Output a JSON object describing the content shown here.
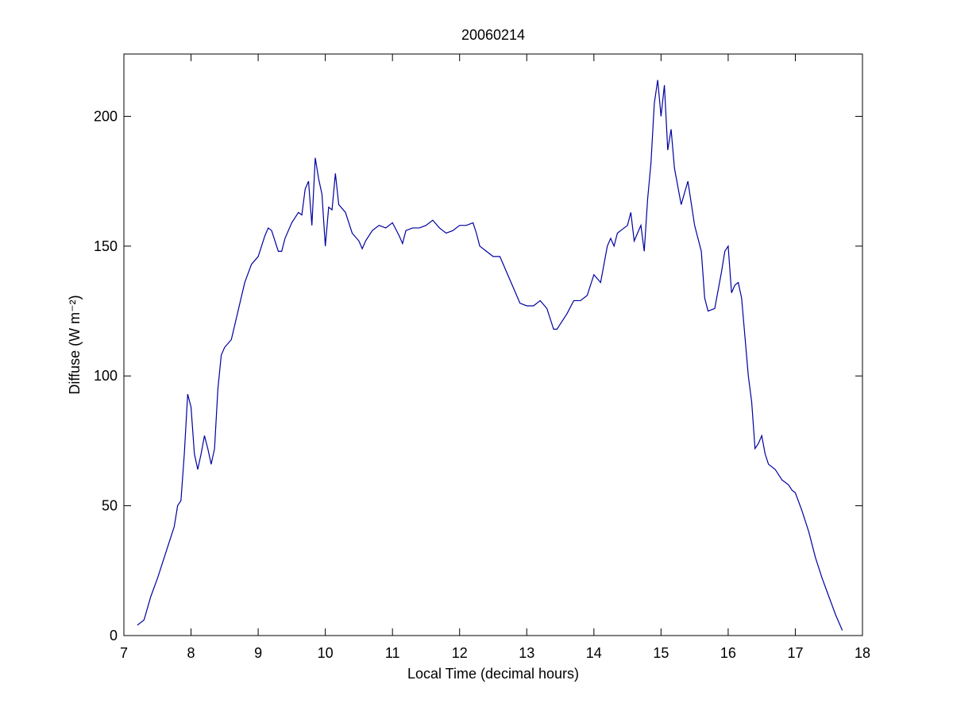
{
  "chart_data": {
    "type": "line",
    "title": "20060214",
    "xlabel": "Local Time (decimal hours)",
    "ylabel": "Diffuse (W m⁻²)",
    "x": [
      7.2,
      7.3,
      7.4,
      7.5,
      7.6,
      7.7,
      7.75,
      7.8,
      7.85,
      7.9,
      7.95,
      8.0,
      8.05,
      8.1,
      8.15,
      8.2,
      8.25,
      8.3,
      8.35,
      8.4,
      8.45,
      8.5,
      8.6,
      8.7,
      8.8,
      8.9,
      9.0,
      9.1,
      9.15,
      9.2,
      9.3,
      9.35,
      9.4,
      9.5,
      9.6,
      9.65,
      9.7,
      9.75,
      9.8,
      9.85,
      9.9,
      9.95,
      10.0,
      10.05,
      10.1,
      10.15,
      10.2,
      10.3,
      10.4,
      10.5,
      10.55,
      10.6,
      10.7,
      10.8,
      10.9,
      11.0,
      11.1,
      11.15,
      11.2,
      11.3,
      11.4,
      11.5,
      11.6,
      11.7,
      11.8,
      11.9,
      12.0,
      12.1,
      12.2,
      12.25,
      12.3,
      12.4,
      12.5,
      12.6,
      12.7,
      12.8,
      12.9,
      13.0,
      13.1,
      13.2,
      13.3,
      13.4,
      13.45,
      13.5,
      13.6,
      13.7,
      13.8,
      13.9,
      14.0,
      14.1,
      14.2,
      14.25,
      14.3,
      14.35,
      14.4,
      14.5,
      14.55,
      14.6,
      14.7,
      14.75,
      14.8,
      14.85,
      14.9,
      14.95,
      15.0,
      15.05,
      15.1,
      15.15,
      15.2,
      15.3,
      15.4,
      15.5,
      15.6,
      15.65,
      15.7,
      15.8,
      15.9,
      15.95,
      16.0,
      16.05,
      16.1,
      16.15,
      16.2,
      16.25,
      16.3,
      16.35,
      16.4,
      16.45,
      16.5,
      16.55,
      16.6,
      16.7,
      16.8,
      16.9,
      16.95,
      17.0,
      17.1,
      17.2,
      17.3,
      17.4,
      17.5,
      17.6,
      17.7
    ],
    "series": [
      {
        "name": "Diffuse",
        "color": "#0000a0",
        "values": [
          4,
          6,
          15,
          22,
          30,
          38,
          42,
          50,
          52,
          70,
          93,
          88,
          70,
          64,
          70,
          77,
          72,
          66,
          72,
          95,
          108,
          111,
          114,
          125,
          136,
          143,
          146,
          154,
          157,
          156,
          148,
          148,
          153,
          159,
          163,
          162,
          172,
          175,
          158,
          184,
          176,
          170,
          150,
          165,
          164,
          178,
          166,
          163,
          155,
          152,
          149,
          152,
          156,
          158,
          157,
          159,
          154,
          151,
          156,
          157,
          157,
          158,
          160,
          157,
          155,
          156,
          158,
          158,
          159,
          155,
          150,
          148,
          146,
          146,
          140,
          134,
          128,
          127,
          127,
          129,
          126,
          118,
          118,
          120,
          124,
          129,
          129,
          131,
          139,
          136,
          150,
          153,
          150,
          155,
          156,
          158,
          163,
          152,
          158,
          148,
          168,
          182,
          205,
          214,
          200,
          212,
          187,
          195,
          180,
          166,
          175,
          158,
          148,
          130,
          125,
          126,
          140,
          148,
          150,
          132,
          135,
          136,
          130,
          115,
          100,
          90,
          72,
          74,
          77,
          70,
          66,
          64,
          60,
          58,
          56,
          55,
          48,
          40,
          30,
          22,
          15,
          8,
          2
        ]
      }
    ],
    "xlim": [
      7,
      18
    ],
    "xticks": [
      7,
      8,
      9,
      10,
      11,
      12,
      13,
      14,
      15,
      16,
      17,
      18
    ],
    "ylim": [
      0,
      224
    ],
    "yticks": [
      0,
      50,
      100,
      150,
      200
    ]
  }
}
